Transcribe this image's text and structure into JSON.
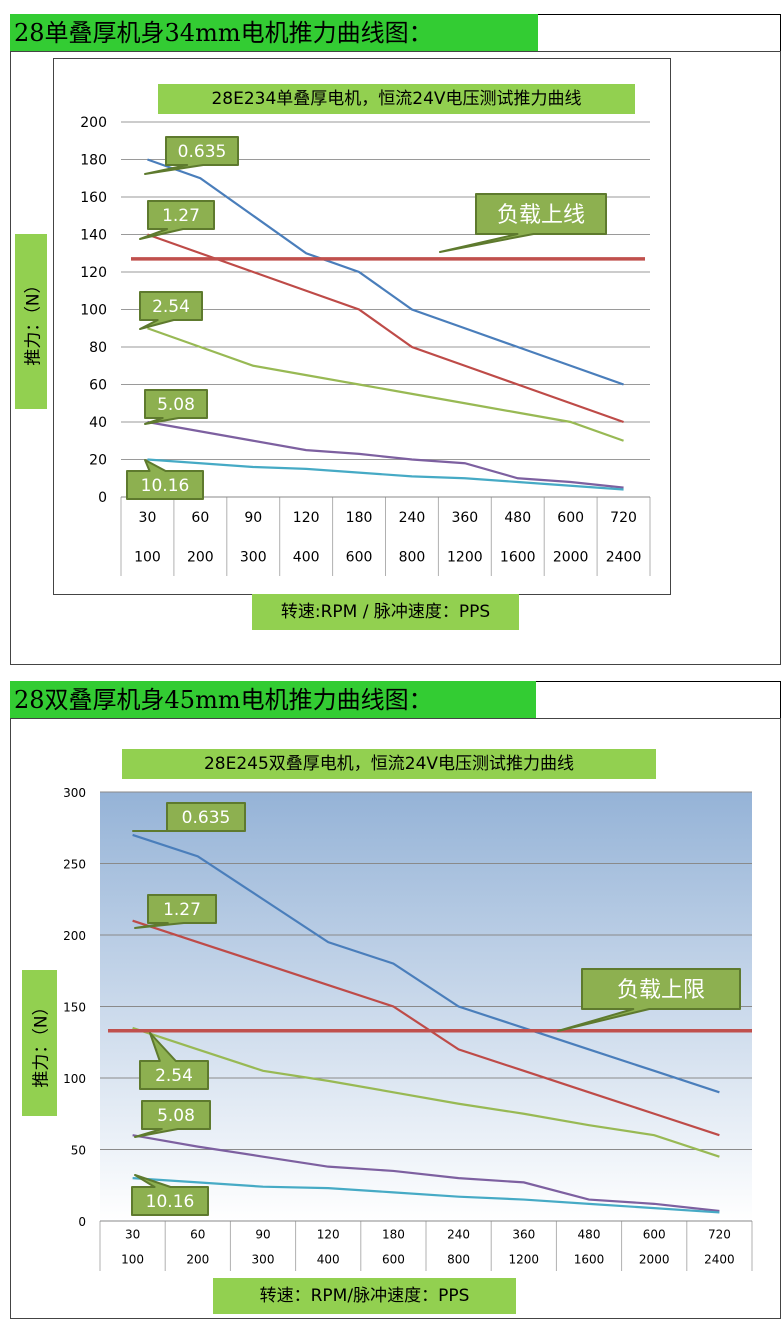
{
  "sections": [
    {
      "title": "28单叠厚机身34mm电机推力曲线图："
    },
    {
      "title": "28双叠厚机身45mm电机推力曲线图："
    }
  ],
  "chart_data": [
    {
      "type": "line",
      "title": "28E234单叠厚电机，恒流24V电压测试推力曲线",
      "ylabel": "推力：（N）",
      "xlabel": "转速:RPM / 脉冲速度：PPS",
      "ylim": [
        0,
        200
      ],
      "yticks": [
        0,
        20,
        40,
        60,
        80,
        100,
        120,
        140,
        160,
        180,
        200
      ],
      "categories_rpm": [
        "30",
        "60",
        "90",
        "120",
        "180",
        "240",
        "360",
        "480",
        "600",
        "720"
      ],
      "categories_pps": [
        "100",
        "200",
        "300",
        "400",
        "600",
        "800",
        "1200",
        "1600",
        "2000",
        "2400"
      ],
      "grid": true,
      "series": [
        {
          "name": "0.635",
          "color": "#4a7ebb",
          "values": [
            180,
            170,
            150,
            130,
            120,
            100,
            90,
            80,
            70,
            60
          ]
        },
        {
          "name": "1.27",
          "color": "#be4b48",
          "values": [
            140,
            130,
            120,
            110,
            100,
            80,
            70,
            60,
            50,
            40
          ]
        },
        {
          "name": "2.54",
          "color": "#98b954",
          "values": [
            90,
            80,
            70,
            65,
            60,
            55,
            50,
            45,
            40,
            30
          ]
        },
        {
          "name": "5.08",
          "color": "#7d60a0",
          "values": [
            40,
            35,
            30,
            25,
            23,
            20,
            18,
            10,
            8,
            5
          ]
        },
        {
          "name": "10.16",
          "color": "#46aac5",
          "values": [
            20,
            18,
            16,
            15,
            13,
            11,
            10,
            8,
            6,
            4
          ]
        }
      ],
      "limit": {
        "label": "负载上线",
        "value": 127,
        "color": "#c0504d"
      }
    },
    {
      "type": "line",
      "title": "28E245双叠厚电机，恒流24V电压测试推力曲线",
      "ylabel": "推力：（N）",
      "xlabel": "转速：RPM/脉冲速度：PPS",
      "ylim": [
        0,
        300
      ],
      "yticks": [
        0,
        50,
        100,
        150,
        200,
        250,
        300
      ],
      "categories_rpm": [
        "30",
        "60",
        "90",
        "120",
        "180",
        "240",
        "360",
        "480",
        "600",
        "720"
      ],
      "categories_pps": [
        "100",
        "200",
        "300",
        "400",
        "600",
        "800",
        "1200",
        "1600",
        "2000",
        "2400"
      ],
      "grid": true,
      "series": [
        {
          "name": "0.635",
          "color": "#4a7ebb",
          "values": [
            270,
            255,
            225,
            195,
            180,
            150,
            135,
            120,
            105,
            90
          ]
        },
        {
          "name": "1.27",
          "color": "#be4b48",
          "values": [
            210,
            195,
            180,
            165,
            150,
            120,
            105,
            90,
            75,
            60
          ]
        },
        {
          "name": "2.54",
          "color": "#98b954",
          "values": [
            135,
            120,
            105,
            98,
            90,
            82,
            75,
            67,
            60,
            45
          ]
        },
        {
          "name": "5.08",
          "color": "#7d60a0",
          "values": [
            60,
            52,
            45,
            38,
            35,
            30,
            27,
            15,
            12,
            7
          ]
        },
        {
          "name": "10.16",
          "color": "#46aac5",
          "values": [
            30,
            27,
            24,
            23,
            20,
            17,
            15,
            12,
            9,
            6
          ]
        }
      ],
      "limit": {
        "label": "负载上限",
        "value": 133,
        "color": "#c0504d"
      }
    }
  ]
}
